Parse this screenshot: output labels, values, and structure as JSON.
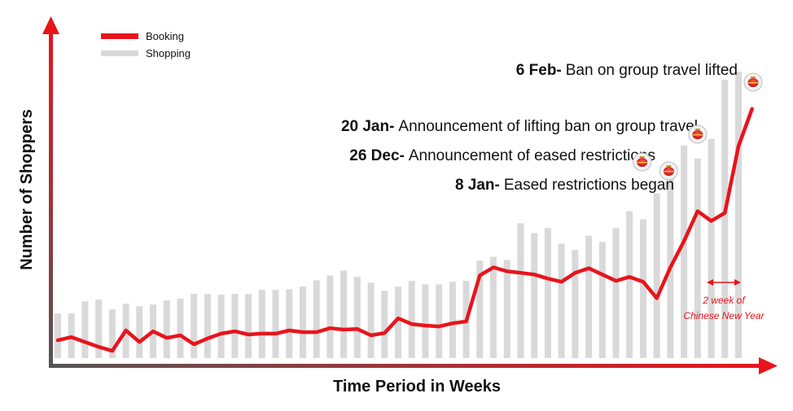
{
  "chart_data": {
    "type": "bar",
    "title": "",
    "xlabel": "Time Period in Weeks",
    "ylabel": "Number of Shoppers",
    "ylim": [
      0,
      100
    ],
    "grid": false,
    "legend_position": "top-left",
    "x": [
      1,
      2,
      3,
      4,
      5,
      6,
      7,
      8,
      9,
      10,
      11,
      12,
      13,
      14,
      15,
      16,
      17,
      18,
      19,
      20,
      21,
      22,
      23,
      24,
      25,
      26,
      27,
      28,
      29,
      30,
      31,
      32,
      33,
      34,
      35,
      36,
      37,
      38,
      39,
      40,
      41,
      42,
      43,
      44,
      45,
      46,
      47,
      48,
      49,
      50,
      51,
      52,
      53
    ],
    "series": [
      {
        "name": "Shopping",
        "type": "bar",
        "color": "#d9d9d9",
        "values": [
          15.5,
          15.5,
          19.7,
          20.3,
          16.9,
          18.9,
          18.0,
          18.6,
          20.0,
          20.6,
          22.3,
          22.3,
          22.0,
          22.3,
          22.3,
          23.7,
          23.7,
          23.9,
          24.8,
          27.0,
          28.7,
          30.4,
          28.2,
          26.2,
          23.3,
          24.8,
          26.8,
          25.6,
          25.6,
          26.5,
          26.8,
          33.8,
          35.2,
          34.1,
          46.8,
          43.4,
          45.1,
          39.7,
          37.5,
          42.5,
          40.3,
          45.1,
          51.0,
          48.2,
          57.2,
          62.8,
          73.8,
          69.3,
          76.1,
          96.6,
          99.4,
          null,
          null
        ]
      },
      {
        "name": "Booking",
        "type": "line",
        "color": "#e8141c",
        "values": [
          6.2,
          7.3,
          5.6,
          3.9,
          2.5,
          9.6,
          5.6,
          9.3,
          7.0,
          7.9,
          4.8,
          6.8,
          8.5,
          9.3,
          8.2,
          8.5,
          8.5,
          9.6,
          9.0,
          9.0,
          10.4,
          9.9,
          10.1,
          7.9,
          8.7,
          13.8,
          11.8,
          11.3,
          11.0,
          12.1,
          12.7,
          28.7,
          31.5,
          30.1,
          29.6,
          29.0,
          27.6,
          26.5,
          29.6,
          31.2,
          29.0,
          26.8,
          28.2,
          26.5,
          20.8,
          31.5,
          40.6,
          51.0,
          47.6,
          50.4,
          73.5,
          86.5,
          null
        ]
      }
    ],
    "annotations": [
      {
        "date": "6 Feb-",
        "text": "Ban on group travel lifted",
        "week": 51
      },
      {
        "date": "20 Jan-",
        "text": "Announcement of lifting ban on group travel",
        "week": 48
      },
      {
        "date": "26 Dec-",
        "text": "Announcement of eased restrictions",
        "week": 45
      },
      {
        "date": "8 Jan-",
        "text": "Eased restrictions began",
        "week": 46
      }
    ],
    "cny_note": {
      "line1": "2 week of",
      "line2": "Chinese New Year",
      "from_week": 48,
      "to_week": 50,
      "color": "#e8141c"
    }
  },
  "colors": {
    "accent": "#e8141c",
    "bar": "#d9d9d9",
    "axis_gradient_start": "#555555"
  }
}
